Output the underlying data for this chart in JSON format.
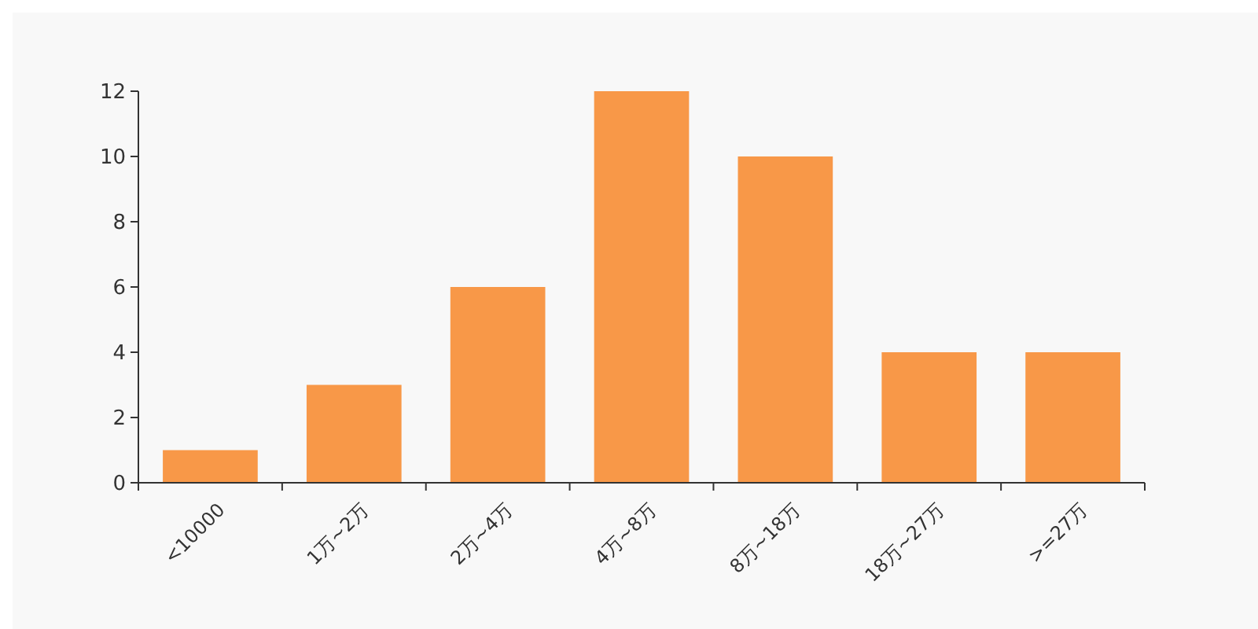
{
  "chart_data": {
    "type": "bar",
    "categories": [
      "<10000",
      "1万~2万",
      "2万~4万",
      "4万~8万",
      "8万~18万",
      "18万~27万",
      ">=27万"
    ],
    "values": [
      1,
      3,
      6,
      12,
      10,
      4,
      4
    ],
    "color": "#f89848",
    "ylim": [
      0,
      12
    ],
    "yticks": [
      0,
      2,
      4,
      6,
      8,
      10,
      12
    ],
    "grid": false
  }
}
